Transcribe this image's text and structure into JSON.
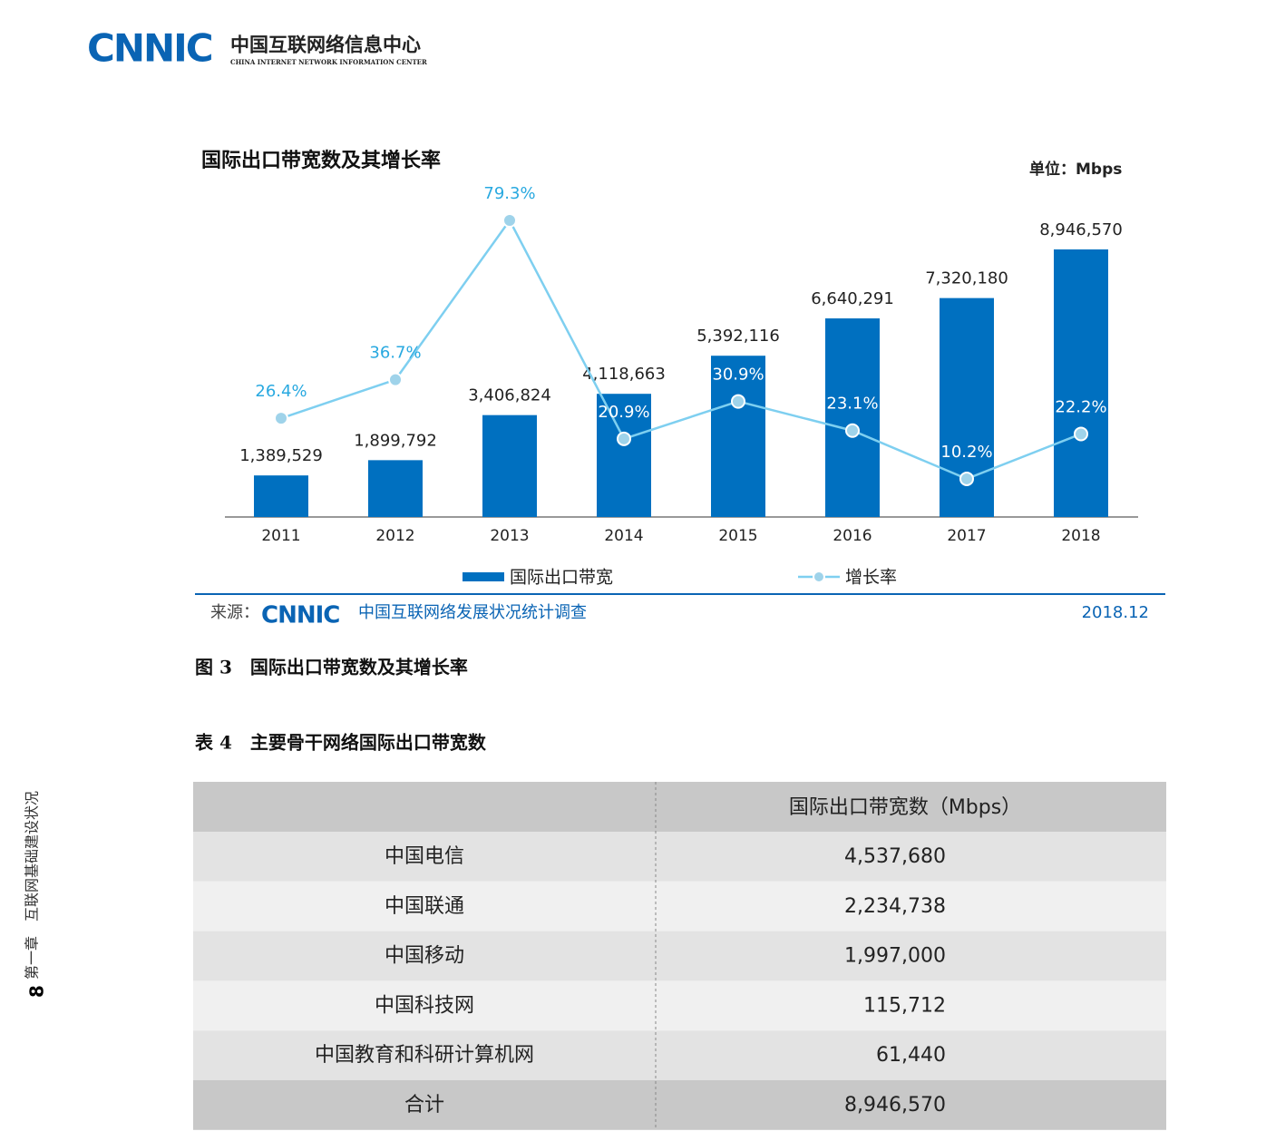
{
  "header": {
    "logo": "CNNIC",
    "org_cn": "中国互联网络信息中心",
    "org_en": "CHINA INTERNET NETWORK INFORMATION CENTER"
  },
  "chart_data": {
    "type": "barline",
    "title": "国际出口带宽数及其增长率",
    "unit": "单位：Mbps",
    "categories": [
      "2011",
      "2012",
      "2013",
      "2014",
      "2015",
      "2016",
      "2017",
      "2018"
    ],
    "series": [
      {
        "name": "国际出口带宽",
        "type": "bar",
        "color": "#0070c0",
        "values": [
          1389529,
          1899792,
          3406824,
          4118663,
          5392116,
          6640291,
          7320180,
          8946570
        ],
        "value_labels": [
          "1,389,529",
          "1,899,792",
          "3,406,824",
          "4,118,663",
          "5,392,116",
          "6,640,291",
          "7,320,180",
          "8,946,570"
        ]
      },
      {
        "name": "增长率",
        "type": "line",
        "axis": "y2",
        "color": "#7ecff0",
        "values": [
          26.4,
          36.7,
          79.3,
          20.9,
          30.9,
          23.1,
          10.2,
          22.2
        ],
        "value_labels": [
          "26.4%",
          "36.7%",
          "79.3%",
          "20.9%",
          "30.9%",
          "23.1%",
          "10.2%",
          "22.2%"
        ]
      }
    ],
    "source": {
      "prefix": "来源：",
      "logo": "CNNIC",
      "text": "中国互联网络发展状况统计调查",
      "date": "2018.12"
    }
  },
  "figure_caption": "图 3　国际出口带宽数及其增长率",
  "table_caption": "表 4　主要骨干网络国际出口带宽数",
  "table": {
    "header": "国际出口带宽数（Mbps）",
    "rows": [
      [
        "中国电信",
        "4,537,680"
      ],
      [
        "中国联通",
        "2,234,738"
      ],
      [
        "中国移动",
        "1,997,000"
      ],
      [
        "中国科技网",
        "115,712"
      ],
      [
        "中国教育和科研计算机网",
        "61,440"
      ],
      [
        "合计",
        "8,946,570"
      ]
    ]
  },
  "side": {
    "page": "8",
    "chapter": "第一章　互联网基础建设状况"
  }
}
